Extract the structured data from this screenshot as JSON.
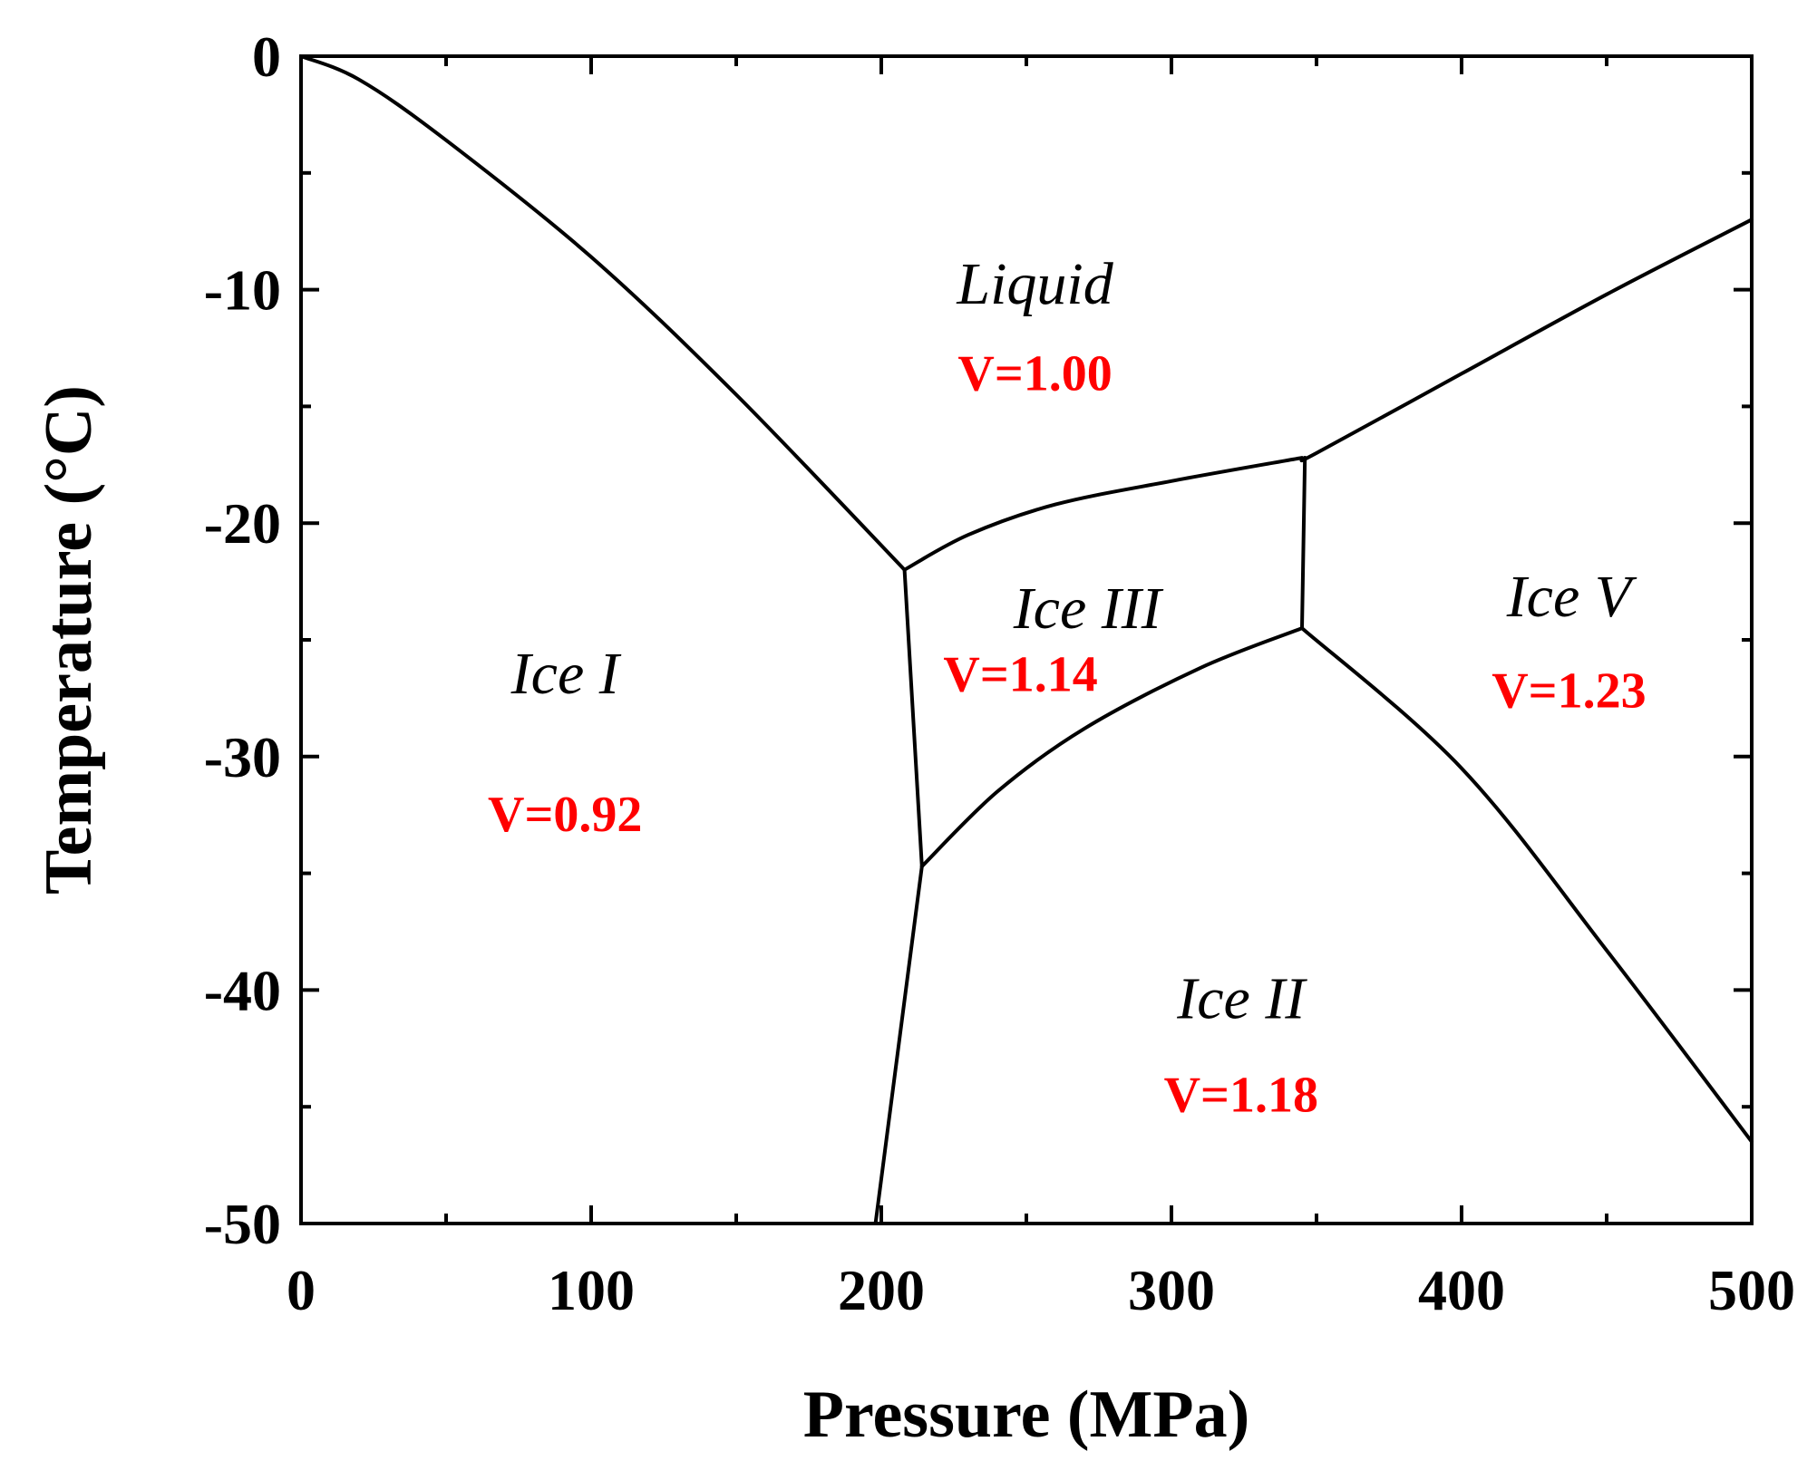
{
  "chart_data": {
    "type": "line",
    "title": "",
    "xlabel": "Pressure (MPa)",
    "ylabel": "Temperature (°C)",
    "xlim": [
      0,
      500
    ],
    "ylim": [
      -50,
      0
    ],
    "x_major_ticks": [
      0,
      100,
      200,
      300,
      400,
      500
    ],
    "x_tick_labels": [
      "0",
      "100",
      "200",
      "300",
      "400",
      "500"
    ],
    "x_minor_ticks": [
      50,
      150,
      250,
      350,
      450
    ],
    "y_major_ticks": [
      0,
      -10,
      -20,
      -30,
      -40,
      -50
    ],
    "y_tick_labels": [
      "0",
      "-10",
      "-20",
      "-30",
      "-40",
      "-50"
    ],
    "y_minor_ticks": [
      -5,
      -15,
      -25,
      -35,
      -45
    ],
    "grid": false,
    "legend": "none",
    "series": [
      {
        "name": "Liquid / Ice I melting curve",
        "points": [
          [
            0,
            0
          ],
          [
            20,
            -1
          ],
          [
            50,
            -3.6
          ],
          [
            100,
            -8.6
          ],
          [
            150,
            -14.5
          ],
          [
            208,
            -22
          ]
        ]
      },
      {
        "name": "Ice I / Ice III boundary",
        "points": [
          [
            208,
            -22
          ],
          [
            214,
            -34.7
          ]
        ]
      },
      {
        "name": "Ice I / Ice II boundary",
        "points": [
          [
            214,
            -34.7
          ],
          [
            198,
            -50
          ]
        ]
      },
      {
        "name": "Liquid / Ice III boundary",
        "points": [
          [
            208,
            -22
          ],
          [
            230,
            -20.5
          ],
          [
            260,
            -19.2
          ],
          [
            300,
            -18.2
          ],
          [
            345,
            -17.2
          ]
        ]
      },
      {
        "name": "Ice III / Ice II boundary",
        "points": [
          [
            214,
            -34.7
          ],
          [
            240,
            -31.5
          ],
          [
            270,
            -28.8
          ],
          [
            310,
            -26.2
          ],
          [
            345,
            -24.5
          ]
        ]
      },
      {
        "name": "Ice III / Ice V boundary",
        "points": [
          [
            345,
            -24.5
          ],
          [
            346,
            -17.2
          ]
        ]
      },
      {
        "name": "Liquid / Ice V boundary",
        "points": [
          [
            346,
            -17.2
          ],
          [
            350,
            -17
          ],
          [
            400,
            -13.6
          ],
          [
            450,
            -10.2
          ],
          [
            500,
            -7
          ]
        ]
      },
      {
        "name": "Ice II / Ice V boundary",
        "points": [
          [
            345,
            -24.5
          ],
          [
            400,
            -30.5
          ],
          [
            450,
            -38.3
          ],
          [
            500,
            -46.5
          ]
        ]
      }
    ],
    "regions": [
      {
        "phase": "Liquid",
        "volume": "V=1.00",
        "x": 253,
        "y": -10.6,
        "vx": 253,
        "vy": -14.3
      },
      {
        "phase": "Ice III",
        "volume": "V=1.14",
        "x": 271,
        "y": -24.5,
        "vx": 248,
        "vy": -27.2
      },
      {
        "phase": "Ice I",
        "volume": "V=0.92",
        "x": 91,
        "y": -27.3,
        "vx": 91,
        "vy": -33.2
      },
      {
        "phase": "Ice V",
        "volume": "V=1.23",
        "x": 437,
        "y": -24,
        "vx": 437,
        "vy": -27.9
      },
      {
        "phase": "Ice II",
        "volume": "V=1.18",
        "x": 324,
        "y": -41.2,
        "vx": 324,
        "vy": -45.2
      }
    ]
  },
  "colors": {
    "volume_label": "#ff0000",
    "lines": "#000000"
  }
}
